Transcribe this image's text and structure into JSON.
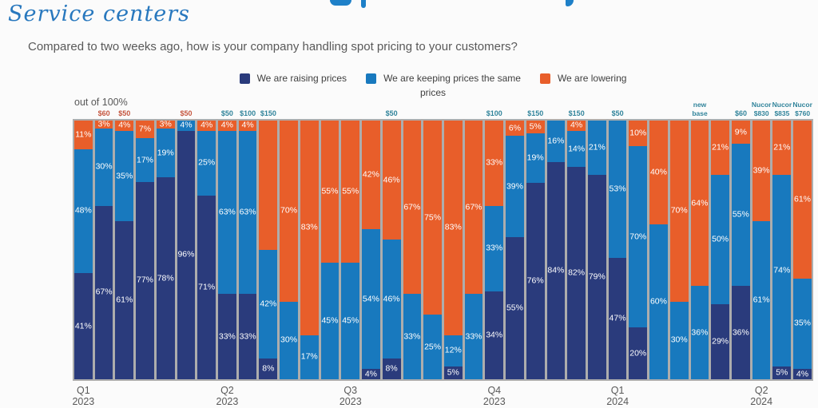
{
  "header": {
    "section_title": "Service centers",
    "question": "Compared to two weeks ago, how is your company handling spot pricing to your customers?"
  },
  "legend": {
    "items": [
      {
        "name": "raising",
        "lines": [
          "We are raising prices"
        ]
      },
      {
        "name": "keeping",
        "lines": [
          "We are keeping prices the same"
        ]
      },
      {
        "name": "lowering",
        "lines": [
          "We are lowering",
          "prices"
        ]
      }
    ]
  },
  "colors": {
    "raising": "#2a3b7c",
    "keeping": "#1879be",
    "lowering": "#e85e2a",
    "annotation_teal": "#31849b",
    "annotation_orange": "#c5563f",
    "title_blue": "#2878be",
    "text_gray": "#595959",
    "legend_text": "#404040",
    "plot_bg": "#adadad",
    "label_white": "#ffffff",
    "fragment_blue": "#1e80c8"
  },
  "chart_data": {
    "type": "bar",
    "stacked": true,
    "unit": "percent",
    "note": "out of 100%",
    "bar_count": 36,
    "ylim": [
      0,
      100
    ],
    "legend_position": "top-center",
    "series": [
      {
        "key": "raising",
        "name": "We are raising prices",
        "values": [
          41,
          67,
          61,
          77,
          78,
          96,
          71,
          33,
          33,
          8,
          0,
          0,
          0,
          0,
          4,
          8,
          0,
          0,
          5,
          0,
          34,
          55,
          76,
          84,
          82,
          79,
          47,
          20,
          0,
          0,
          0,
          29,
          36,
          0,
          5,
          4
        ]
      },
      {
        "key": "keeping",
        "name": "We are keeping prices the same",
        "values": [
          48,
          30,
          35,
          17,
          19,
          4,
          25,
          63,
          63,
          42,
          30,
          17,
          45,
          45,
          54,
          46,
          33,
          25,
          12,
          33,
          33,
          39,
          19,
          16,
          14,
          21,
          53,
          70,
          60,
          30,
          36,
          50,
          55,
          61,
          74,
          35
        ]
      },
      {
        "key": "lowering",
        "name": "We are lowering prices",
        "values": [
          11,
          3,
          4,
          7,
          3,
          0,
          4,
          4,
          4,
          50,
          70,
          83,
          55,
          55,
          42,
          46,
          67,
          75,
          83,
          67,
          33,
          6,
          5,
          0,
          4,
          0,
          0,
          10,
          40,
          70,
          64,
          21,
          9,
          39,
          21,
          61
        ]
      }
    ],
    "label_hidden": [
      {
        "bar": 10,
        "series": "lowering"
      }
    ],
    "annotations": [
      {
        "bar": 2,
        "lines": [
          "$60"
        ],
        "color": "orange"
      },
      {
        "bar": 3,
        "lines": [
          "$50"
        ],
        "color": "orange"
      },
      {
        "bar": 6,
        "lines": [
          "$50"
        ],
        "color": "orange"
      },
      {
        "bar": 8,
        "lines": [
          "$50"
        ],
        "color": "teal"
      },
      {
        "bar": 9,
        "lines": [
          "$100"
        ],
        "color": "teal"
      },
      {
        "bar": 10,
        "lines": [
          "$150"
        ],
        "color": "teal"
      },
      {
        "bar": 16,
        "lines": [
          "$50"
        ],
        "color": "teal"
      },
      {
        "bar": 21,
        "lines": [
          "$100"
        ],
        "color": "teal"
      },
      {
        "bar": 23,
        "lines": [
          "$150"
        ],
        "color": "teal"
      },
      {
        "bar": 25,
        "lines": [
          "$150"
        ],
        "color": "teal"
      },
      {
        "bar": 27,
        "lines": [
          "$50"
        ],
        "color": "teal"
      },
      {
        "bar": 31,
        "lines": [
          "new",
          "base"
        ],
        "color": "teal"
      },
      {
        "bar": 33,
        "lines": [
          "$60"
        ],
        "color": "teal"
      },
      {
        "bar": 34,
        "lines": [
          "Nucor",
          "$830"
        ],
        "color": "teal"
      },
      {
        "bar": 35,
        "lines": [
          "Nucor",
          "$835"
        ],
        "color": "teal"
      },
      {
        "bar": 36,
        "lines": [
          "Nucor",
          "$760"
        ],
        "color": "teal"
      }
    ],
    "quarter_ticks": [
      {
        "bar": 1,
        "lines": [
          "Q1",
          "2023"
        ]
      },
      {
        "bar": 8,
        "lines": [
          "Q2",
          "2023"
        ]
      },
      {
        "bar": 14,
        "lines": [
          "Q3",
          "2023"
        ]
      },
      {
        "bar": 21,
        "lines": [
          "Q4",
          "2023"
        ]
      },
      {
        "bar": 27,
        "lines": [
          "Q1",
          "2024"
        ]
      },
      {
        "bar": 34,
        "lines": [
          "Q2",
          "2024"
        ]
      }
    ]
  }
}
